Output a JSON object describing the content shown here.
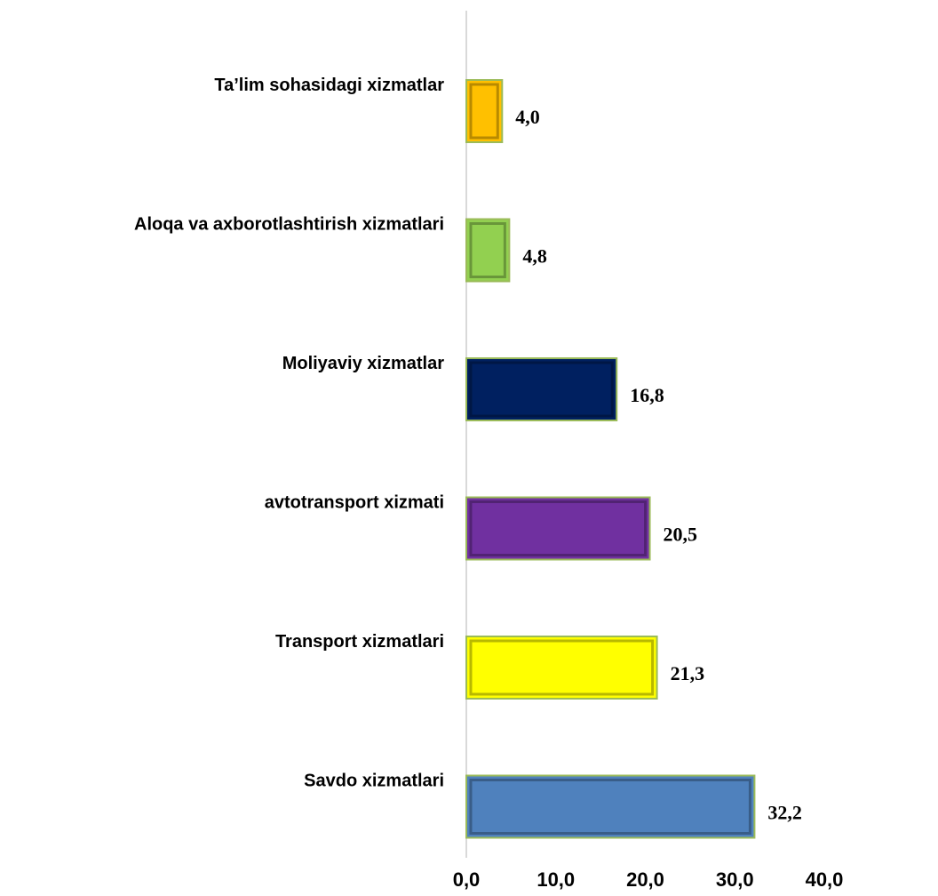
{
  "chart_data": {
    "type": "bar",
    "orientation": "horizontal",
    "categories": [
      "Ta’lim sohasidagi xizmatlar",
      "Aloqa va axborotlashtirish xizmatlari",
      "Moliyaviy xizmatlar",
      "avtotransport xizmati",
      "Transport xizmatlari",
      "Savdo xizmatlari"
    ],
    "values": [
      4.0,
      4.8,
      16.8,
      20.5,
      21.3,
      32.2
    ],
    "value_labels": [
      "4,0",
      "4,8",
      "16,8",
      "20,5",
      "21,3",
      "32,2"
    ],
    "bar_colors": [
      "#FFC000",
      "#92D050",
      "#002060",
      "#7030A0",
      "#FFFF00",
      "#4F81BD"
    ],
    "xlim": [
      0,
      40
    ],
    "x_ticks": [
      0,
      10,
      20,
      30,
      40
    ],
    "x_tick_labels": [
      "0,0",
      "10,0",
      "20,0",
      "30,0",
      "40,0"
    ],
    "grid": false,
    "legend": "none"
  }
}
